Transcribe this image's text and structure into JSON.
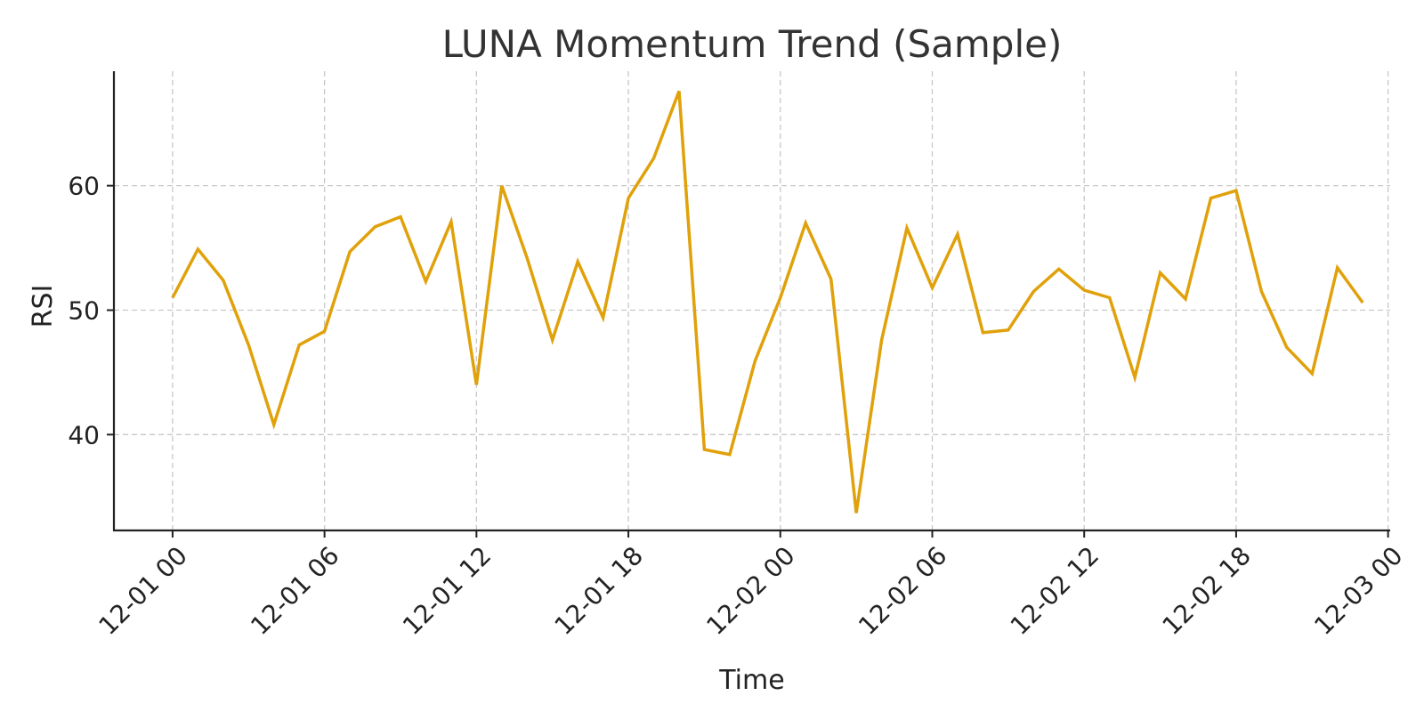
{
  "chart_data": {
    "type": "line",
    "title": "LUNA Momentum Trend (Sample)",
    "xlabel": "Time",
    "ylabel": "RSI",
    "x_ticks": [
      "12-01 00",
      "12-01 06",
      "12-01 12",
      "12-01 18",
      "12-02 00",
      "12-02 06",
      "12-02 12",
      "12-02 18",
      "12-03 00"
    ],
    "y_ticks": [
      40,
      50,
      60
    ],
    "ylim": [
      32.3,
      69.2
    ],
    "xlim": [
      "2023-11-30T21:41",
      "2023-12-03T00:05"
    ],
    "grid": true,
    "x": [
      "2023-12-01T00:00",
      "2023-12-01T01:00",
      "2023-12-01T02:00",
      "2023-12-01T03:00",
      "2023-12-01T04:00",
      "2023-12-01T05:00",
      "2023-12-01T06:00",
      "2023-12-01T07:00",
      "2023-12-01T08:00",
      "2023-12-01T09:00",
      "2023-12-01T10:00",
      "2023-12-01T11:00",
      "2023-12-01T12:00",
      "2023-12-01T13:00",
      "2023-12-01T14:00",
      "2023-12-01T15:00",
      "2023-12-01T16:00",
      "2023-12-01T17:00",
      "2023-12-01T18:00",
      "2023-12-01T19:00",
      "2023-12-01T20:00",
      "2023-12-01T21:00",
      "2023-12-01T22:00",
      "2023-12-01T23:00",
      "2023-12-02T00:00",
      "2023-12-02T01:00",
      "2023-12-02T02:00",
      "2023-12-02T03:00",
      "2023-12-02T04:00",
      "2023-12-02T05:00",
      "2023-12-02T06:00",
      "2023-12-02T07:00",
      "2023-12-02T08:00",
      "2023-12-02T09:00",
      "2023-12-02T10:00",
      "2023-12-02T11:00",
      "2023-12-02T12:00",
      "2023-12-02T13:00",
      "2023-12-02T14:00",
      "2023-12-02T15:00",
      "2023-12-02T16:00",
      "2023-12-02T17:00",
      "2023-12-02T18:00",
      "2023-12-02T19:00",
      "2023-12-02T20:00",
      "2023-12-02T21:00",
      "2023-12-02T22:00",
      "2023-12-02T23:00"
    ],
    "series": [
      {
        "color": "#e0a10a",
        "values": [
          51.0,
          54.9,
          52.4,
          47.2,
          40.8,
          47.2,
          48.3,
          54.7,
          56.7,
          57.5,
          52.3,
          57.1,
          44.0,
          60.0,
          54.2,
          47.6,
          53.9,
          49.4,
          59.0,
          62.2,
          67.6,
          38.8,
          38.4,
          45.9,
          51.0,
          57.0,
          52.5,
          33.7,
          47.6,
          56.6,
          51.8,
          56.1,
          48.2,
          48.4,
          51.5,
          53.3,
          51.6,
          51.0,
          44.6,
          53.0,
          50.9,
          59.0,
          59.6,
          51.5,
          47.0,
          44.9,
          53.4,
          50.6
        ]
      }
    ]
  }
}
